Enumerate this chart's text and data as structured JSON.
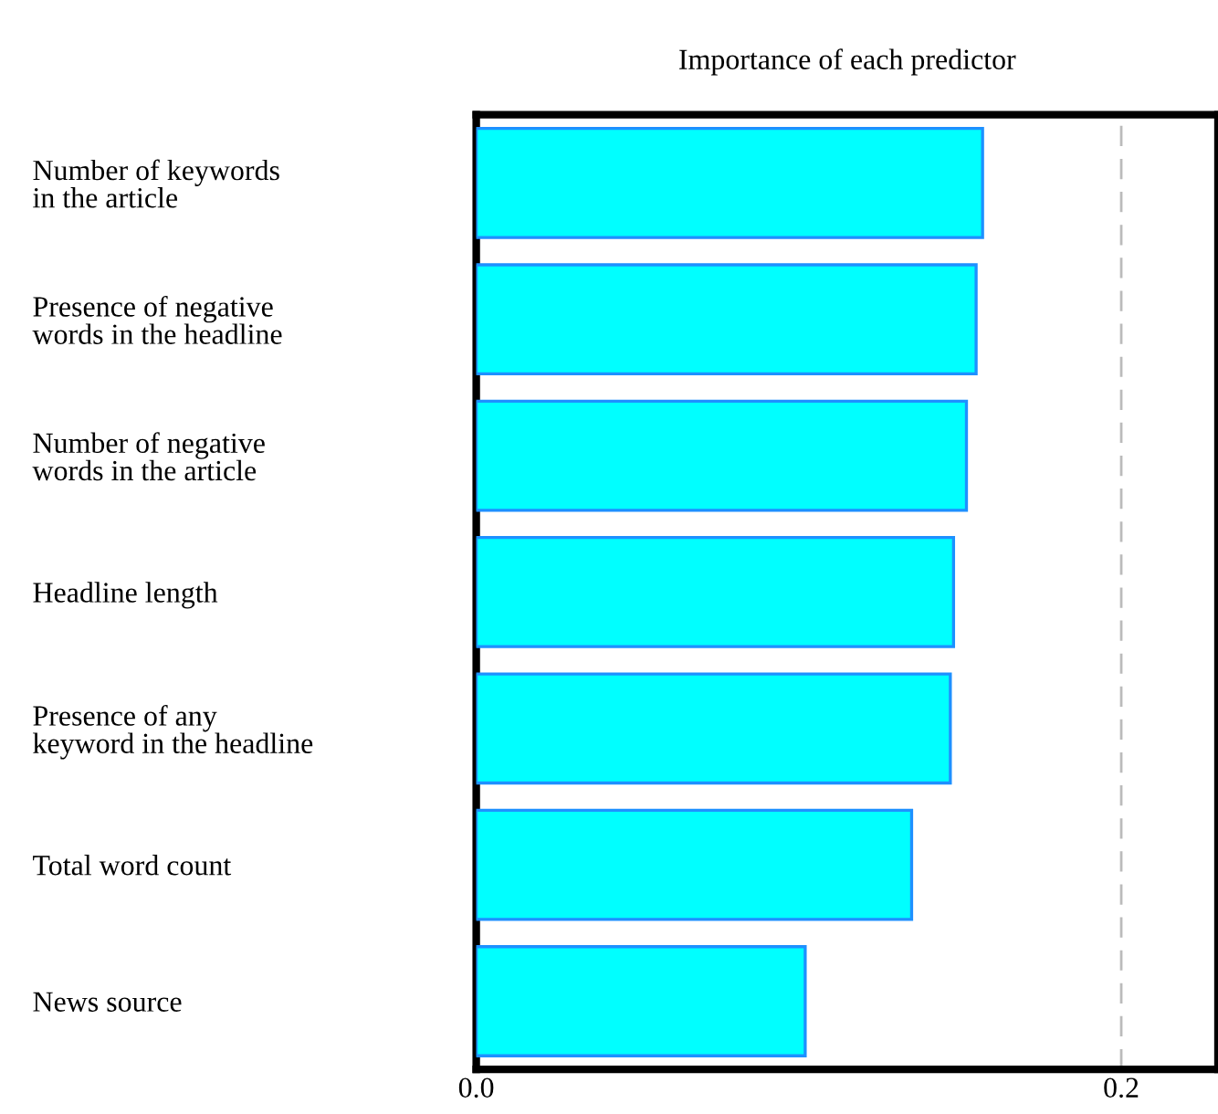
{
  "chart_data": {
    "type": "bar",
    "orientation": "horizontal",
    "title": "Importance of each predictor",
    "categories": [
      "Number of keywords\nin the article",
      "Presence of negative\nwords in the headline",
      "Number of negative\nwords in the article",
      "Headline length",
      "Presence of any\nkeyword in the headline",
      "Total word count",
      "News source"
    ],
    "values": [
      0.157,
      0.155,
      0.152,
      0.148,
      0.147,
      0.135,
      0.102
    ],
    "color": "#00ffff",
    "xlim": [
      0,
      0.23
    ],
    "xticks": [
      {
        "value": 0,
        "label": "0.0"
      },
      0.2
    ],
    "grid": "x"
  }
}
